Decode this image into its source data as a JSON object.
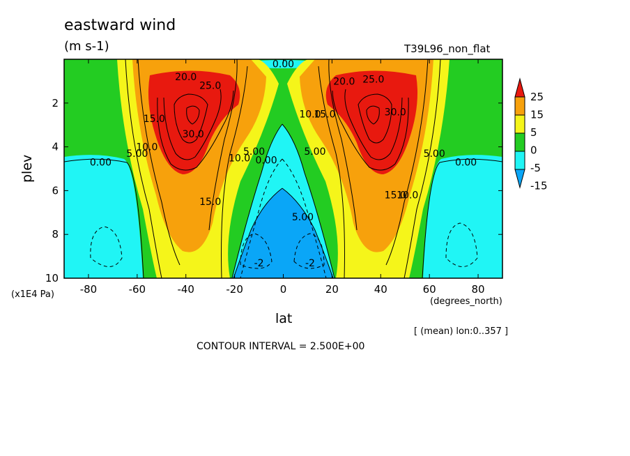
{
  "figure": {
    "title": "eastward wind",
    "units": "(m s-1)",
    "run_name": "T39L96_non_flat",
    "y_unit": "(x1E4 Pa)",
    "x_unit": "(degrees_north)",
    "x_label": "lat",
    "y_label": "plev",
    "mean_info": "[ (mean) lon:0..357 ]",
    "contour_interval": "CONTOUR INTERVAL = 2.500E+00"
  },
  "chart_data": {
    "type": "heatmap",
    "title": "eastward wind",
    "xlabel": "lat",
    "ylabel": "plev",
    "xlim": [
      -90,
      90
    ],
    "ylim": [
      10,
      0
    ],
    "x_ticks": [
      "-80",
      "-60",
      "-40",
      "-20",
      "0",
      "20",
      "40",
      "60",
      "80"
    ],
    "y_ticks": [
      "2",
      "4",
      "6",
      "8",
      "10"
    ],
    "contour_interval": 2.5,
    "colorbar": {
      "labels": [
        "25",
        "15",
        "5",
        "0",
        "-5",
        "-15"
      ],
      "colors": [
        "#e8190f",
        "#f7a10c",
        "#f5f51a",
        "#23cc22",
        "#20f5f5",
        "#0aa6f7"
      ]
    },
    "contour_labels": [
      {
        "text": "20.0",
        "lat": -40,
        "plev": 0.8
      },
      {
        "text": "25.0",
        "lat": -30,
        "plev": 1.2
      },
      {
        "text": "15.0",
        "lat": -53,
        "plev": 2.7
      },
      {
        "text": "30.0",
        "lat": -37,
        "plev": 3.4
      },
      {
        "text": "10.0",
        "lat": -56,
        "plev": 4.0
      },
      {
        "text": "5.00",
        "lat": -60,
        "plev": 4.3
      },
      {
        "text": "0.00",
        "lat": -75,
        "plev": 4.7
      },
      {
        "text": "10.0",
        "lat": -18,
        "plev": 4.5
      },
      {
        "text": "5.00",
        "lat": -12,
        "plev": 4.2
      },
      {
        "text": "0.00",
        "lat": -7,
        "plev": 4.6
      },
      {
        "text": "15.0",
        "lat": -30,
        "plev": 6.5
      },
      {
        "text": "0.00",
        "lat": 0,
        "plev": 0.2
      },
      {
        "text": "20.0",
        "lat": 25,
        "plev": 1.0
      },
      {
        "text": "25.0",
        "lat": 37,
        "plev": 0.9
      },
      {
        "text": "10.0",
        "lat": 11,
        "plev": 2.5
      },
      {
        "text": "15.0",
        "lat": 17,
        "plev": 2.5
      },
      {
        "text": "5.00",
        "lat": 13,
        "plev": 4.2
      },
      {
        "text": "30.0",
        "lat": 46,
        "plev": 2.4
      },
      {
        "text": "5.00",
        "lat": 62,
        "plev": 4.3
      },
      {
        "text": "0.00",
        "lat": 75,
        "plev": 4.7
      },
      {
        "text": "5.00",
        "lat": 8,
        "plev": 7.2
      },
      {
        "text": "15.0",
        "lat": 46,
        "plev": 6.2
      },
      {
        "text": "10.0",
        "lat": 51,
        "plev": 6.2
      },
      {
        "text": "-2",
        "lat": -10,
        "plev": 9.3
      },
      {
        "text": "-2",
        "lat": 11,
        "plev": 9.3
      }
    ]
  }
}
